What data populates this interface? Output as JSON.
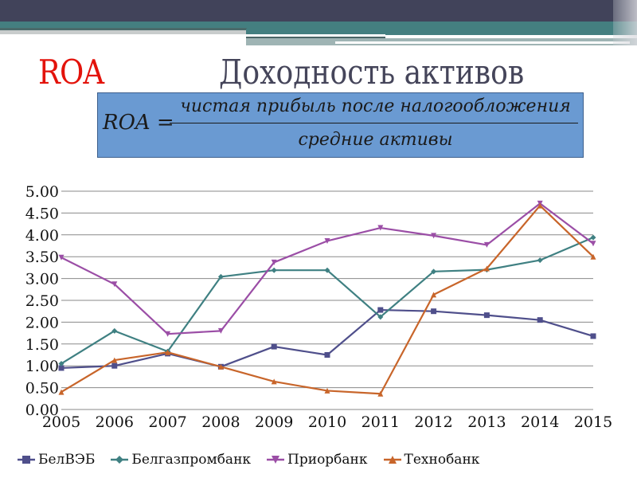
{
  "header": {
    "label": "ROA",
    "title": "Доходность активов"
  },
  "formula": {
    "lhs": "ROA =",
    "numerator": "чистая прибыль после налогообложения",
    "denominator": "средние активы"
  },
  "colors": {
    "title_red": "#e3130b",
    "title_grey": "#45455a",
    "formula_bg": "#6a9ad2",
    "topbar": "#41435a",
    "teal": "#447f80"
  },
  "chart_data": {
    "type": "line",
    "title": "",
    "xlabel": "",
    "ylabel": "",
    "ylim": [
      0,
      5
    ],
    "grid": true,
    "legend_position": "bottom",
    "y_ticks": [
      "0.00",
      "0.50",
      "1.00",
      "1.50",
      "2.00",
      "2.50",
      "3.00",
      "3.50",
      "4.00",
      "4.50",
      "5.00"
    ],
    "categories": [
      "2005",
      "2006",
      "2007",
      "2008",
      "2009",
      "2010",
      "2011",
      "2012",
      "2013",
      "2014",
      "2015"
    ],
    "series": [
      {
        "name": "БелВЭБ",
        "color": "#4f4f8b",
        "marker": "square",
        "values": [
          0.95,
          1.0,
          1.28,
          0.98,
          1.44,
          1.25,
          2.28,
          2.25,
          2.16,
          2.05,
          1.68
        ]
      },
      {
        "name": "Белгазпромбанк",
        "color": "#3f8082",
        "marker": "diamond",
        "values": [
          1.05,
          1.8,
          1.33,
          3.04,
          3.19,
          3.19,
          2.12,
          3.16,
          3.2,
          3.42,
          3.94
        ]
      },
      {
        "name": "Приорбанк",
        "color": "#9b4ea6",
        "marker": "triangle-down",
        "values": [
          3.48,
          2.87,
          1.73,
          1.8,
          3.37,
          3.86,
          4.16,
          3.98,
          3.77,
          4.72,
          3.8
        ]
      },
      {
        "name": "Технобанк",
        "color": "#c8652a",
        "marker": "triangle-up",
        "values": [
          0.4,
          1.13,
          1.31,
          0.98,
          0.64,
          0.43,
          0.36,
          2.63,
          3.23,
          4.67,
          3.5
        ]
      }
    ]
  }
}
